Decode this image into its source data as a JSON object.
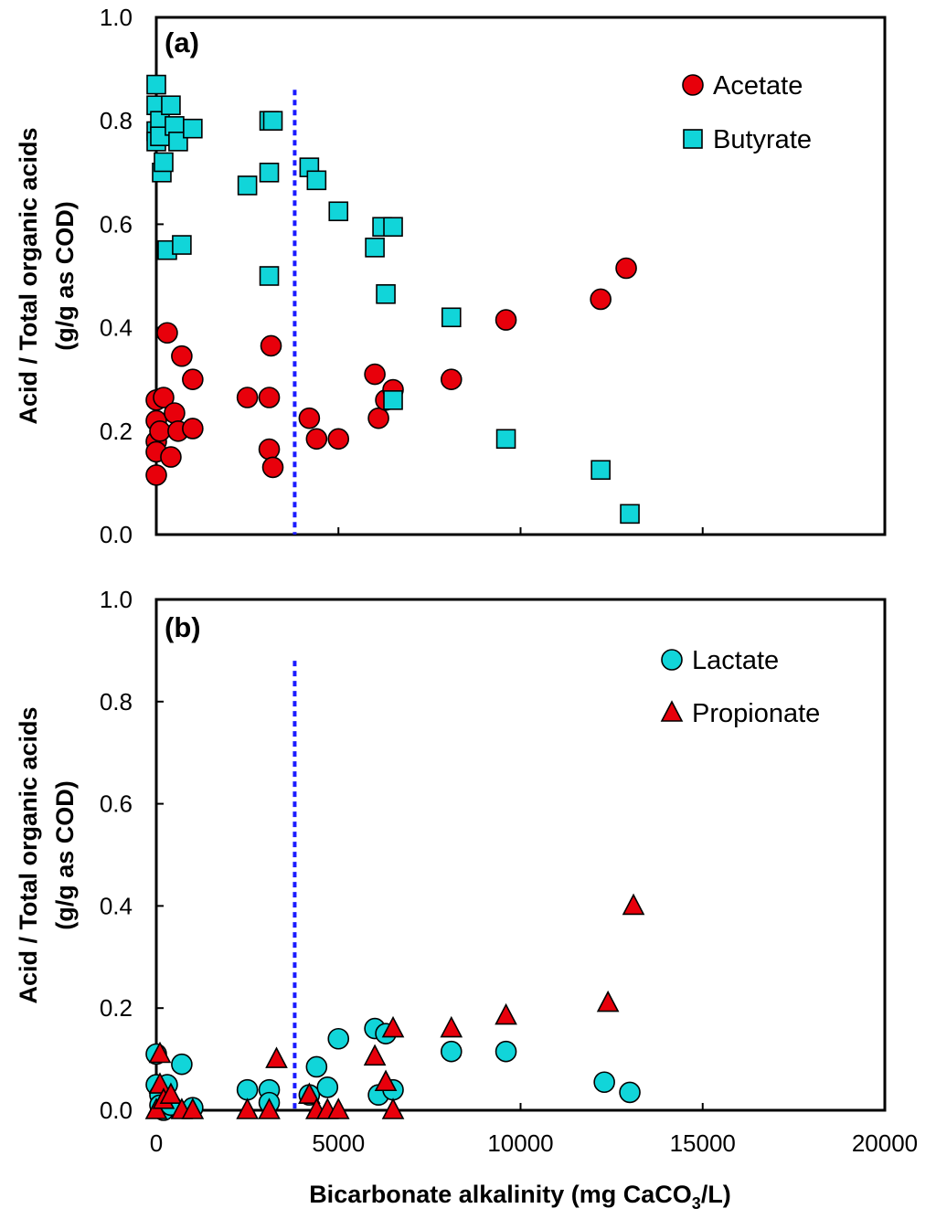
{
  "chart_data": [
    {
      "type": "scatter",
      "panel": "(a)",
      "title": "",
      "ylabel_line1": "Acid / Total organic acids",
      "ylabel_line2": "(g/g as COD)",
      "xlabel": "",
      "xlim": [
        0,
        20000
      ],
      "ylim": [
        0,
        1.0
      ],
      "x_ticks": [],
      "y_ticks": [
        "0.0",
        "0.2",
        "0.4",
        "0.6",
        "0.8",
        "1.0"
      ],
      "legend_position": "top-right",
      "threshold_x": 3800,
      "threshold_y_top": 0.86,
      "series": [
        {
          "name": "Acetate",
          "marker": "circle",
          "color": "#e8000b",
          "points": [
            [
              0,
              0.26
            ],
            [
              0,
              0.22
            ],
            [
              0,
              0.18
            ],
            [
              0,
              0.16
            ],
            [
              0,
              0.115
            ],
            [
              100,
              0.2
            ],
            [
              200,
              0.265
            ],
            [
              300,
              0.39
            ],
            [
              400,
              0.15
            ],
            [
              500,
              0.235
            ],
            [
              600,
              0.2
            ],
            [
              700,
              0.345
            ],
            [
              1000,
              0.205
            ],
            [
              1000,
              0.3
            ],
            [
              2500,
              0.265
            ],
            [
              3100,
              0.265
            ],
            [
              3100,
              0.165
            ],
            [
              3150,
              0.365
            ],
            [
              3200,
              0.13
            ],
            [
              4200,
              0.225
            ],
            [
              4400,
              0.185
            ],
            [
              5000,
              0.185
            ],
            [
              6000,
              0.31
            ],
            [
              6100,
              0.225
            ],
            [
              6300,
              0.26
            ],
            [
              6500,
              0.28
            ],
            [
              8100,
              0.3
            ],
            [
              9600,
              0.415
            ],
            [
              12200,
              0.455
            ],
            [
              12900,
              0.515
            ]
          ]
        },
        {
          "name": "Butyrate",
          "marker": "square",
          "color": "#11d5d9",
          "points": [
            [
              0,
              0.87
            ],
            [
              0,
              0.83
            ],
            [
              0,
              0.78
            ],
            [
              0,
              0.76
            ],
            [
              100,
              0.8
            ],
            [
              100,
              0.77
            ],
            [
              150,
              0.7
            ],
            [
              200,
              0.72
            ],
            [
              300,
              0.55
            ],
            [
              400,
              0.83
            ],
            [
              500,
              0.79
            ],
            [
              600,
              0.76
            ],
            [
              700,
              0.56
            ],
            [
              1000,
              0.785
            ],
            [
              2500,
              0.675
            ],
            [
              3100,
              0.8
            ],
            [
              3200,
              0.8
            ],
            [
              3100,
              0.7
            ],
            [
              3100,
              0.5
            ],
            [
              4200,
              0.71
            ],
            [
              4400,
              0.685
            ],
            [
              5000,
              0.625
            ],
            [
              6000,
              0.555
            ],
            [
              6200,
              0.595
            ],
            [
              6300,
              0.465
            ],
            [
              6500,
              0.595
            ],
            [
              6500,
              0.26
            ],
            [
              8100,
              0.42
            ],
            [
              9600,
              0.185
            ],
            [
              12200,
              0.125
            ],
            [
              13000,
              0.04
            ]
          ]
        }
      ]
    },
    {
      "type": "scatter",
      "panel": "(b)",
      "title": "",
      "ylabel_line1": "Acid / Total organic acids",
      "ylabel_line2": "(g/g as COD)",
      "xlabel": "Bicarbonate alkalinity (mg CaCO",
      "xlabel_sub": "3",
      "xlabel_tail": "/L)",
      "xlim": [
        0,
        20000
      ],
      "ylim": [
        0,
        1.0
      ],
      "x_ticks": [
        "0",
        "5000",
        "10000",
        "15000",
        "20000"
      ],
      "y_ticks": [
        "0.0",
        "0.2",
        "0.4",
        "0.6",
        "0.8",
        "1.0"
      ],
      "legend_position": "top-right",
      "threshold_x": 3800,
      "threshold_y_top": 0.88,
      "series": [
        {
          "name": "Lactate",
          "marker": "circle",
          "color": "#11d5d9",
          "points": [
            [
              0,
              0.11
            ],
            [
              0,
              0.05
            ],
            [
              100,
              0.03
            ],
            [
              100,
              0.01
            ],
            [
              200,
              0.0
            ],
            [
              300,
              0.05
            ],
            [
              400,
              0.01
            ],
            [
              700,
              0.09
            ],
            [
              1000,
              0.005
            ],
            [
              2500,
              0.04
            ],
            [
              3100,
              0.04
            ],
            [
              3100,
              0.015
            ],
            [
              4200,
              0.03
            ],
            [
              4400,
              0.085
            ],
            [
              4700,
              0.045
            ],
            [
              5000,
              0.14
            ],
            [
              6000,
              0.16
            ],
            [
              6100,
              0.03
            ],
            [
              6300,
              0.15
            ],
            [
              6500,
              0.04
            ],
            [
              8100,
              0.115
            ],
            [
              9600,
              0.115
            ],
            [
              12300,
              0.055
            ],
            [
              13000,
              0.035
            ]
          ]
        },
        {
          "name": "Propionate",
          "marker": "triangle",
          "color": "#e8000b",
          "points": [
            [
              0,
              0.0
            ],
            [
              100,
              0.11
            ],
            [
              100,
              0.05
            ],
            [
              200,
              0.02
            ],
            [
              400,
              0.03
            ],
            [
              700,
              0.0
            ],
            [
              1000,
              0.0
            ],
            [
              2500,
              0.0
            ],
            [
              3100,
              0.0
            ],
            [
              3300,
              0.1
            ],
            [
              4200,
              0.03
            ],
            [
              4400,
              0.0
            ],
            [
              4700,
              0.0
            ],
            [
              5000,
              0.0
            ],
            [
              6000,
              0.105
            ],
            [
              6300,
              0.055
            ],
            [
              6500,
              0.16
            ],
            [
              6500,
              0.0
            ],
            [
              8100,
              0.16
            ],
            [
              9600,
              0.185
            ],
            [
              12400,
              0.21
            ],
            [
              13100,
              0.4
            ]
          ]
        }
      ]
    }
  ]
}
